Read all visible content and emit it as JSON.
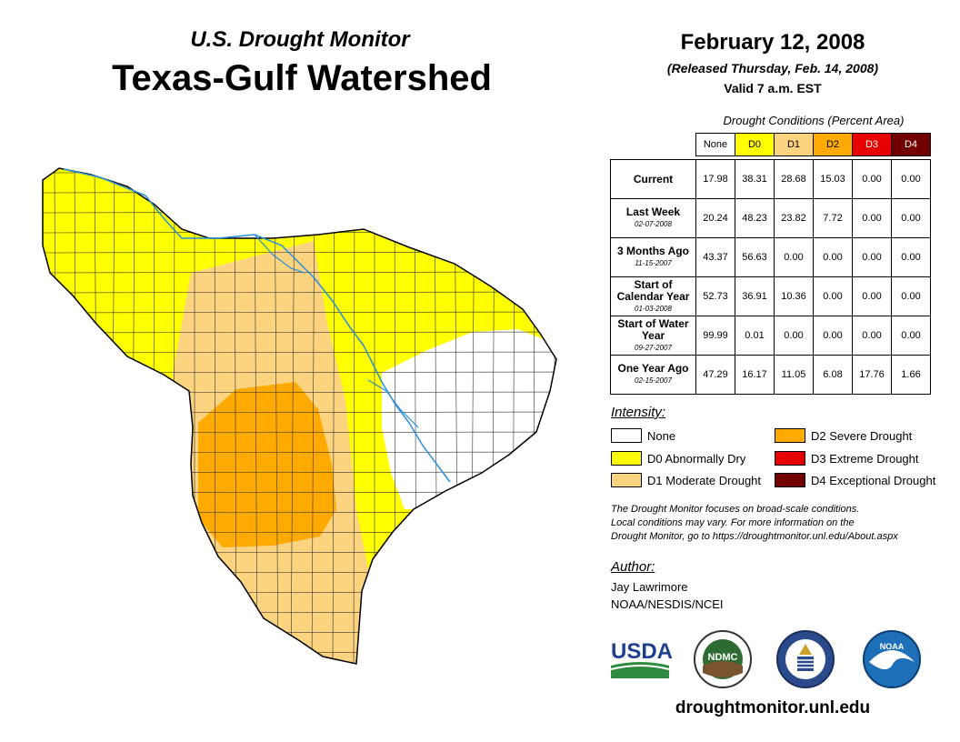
{
  "header": {
    "subtitle": "U.S. Drought Monitor",
    "title": "Texas-Gulf Watershed",
    "date": "February 12, 2008",
    "released": "(Released Thursday, Feb. 14, 2008)",
    "valid": "Valid 7 a.m. EST"
  },
  "table": {
    "caption": "Drought Conditions (Percent Area)",
    "columns": [
      "None",
      "D0",
      "D1",
      "D2",
      "D3",
      "D4"
    ],
    "rows": [
      {
        "label": "Current",
        "date": "",
        "values": [
          "17.98",
          "38.31",
          "28.68",
          "15.03",
          "0.00",
          "0.00"
        ]
      },
      {
        "label": "Last Week",
        "date": "02-07-2008",
        "values": [
          "20.24",
          "48.23",
          "23.82",
          "7.72",
          "0.00",
          "0.00"
        ]
      },
      {
        "label": "3 Months Ago",
        "date": "11-15-2007",
        "values": [
          "43.37",
          "56.63",
          "0.00",
          "0.00",
          "0.00",
          "0.00"
        ]
      },
      {
        "label": "Start of Calendar Year",
        "date": "01-03-2008",
        "values": [
          "52.73",
          "36.91",
          "10.36",
          "0.00",
          "0.00",
          "0.00"
        ]
      },
      {
        "label": "Start of Water Year",
        "date": "09-27-2007",
        "values": [
          "99.99",
          "0.01",
          "0.00",
          "0.00",
          "0.00",
          "0.00"
        ]
      },
      {
        "label": "One Year Ago",
        "date": "02-15-2007",
        "values": [
          "47.29",
          "16.17",
          "11.05",
          "6.08",
          "17.76",
          "1.66"
        ]
      }
    ]
  },
  "legend": {
    "title": "Intensity:",
    "items": [
      {
        "label": "None",
        "color": "#ffffff"
      },
      {
        "label": "D0 Abnormally Dry",
        "color": "#ffff00"
      },
      {
        "label": "D1 Moderate Drought",
        "color": "#fcd37f"
      },
      {
        "label": "D2 Severe Drought",
        "color": "#ffaa00"
      },
      {
        "label": "D3 Extreme Drought",
        "color": "#e60000"
      },
      {
        "label": "D4 Exceptional Drought",
        "color": "#730000"
      }
    ]
  },
  "note": {
    "line1": "The Drought Monitor focuses on broad-scale conditions.",
    "line2": "Local conditions may vary. For more information on the",
    "line3": "Drought Monitor, go to https://droughtmonitor.unl.edu/About.aspx"
  },
  "author": {
    "title": "Author:",
    "name": "Jay Lawrimore",
    "org": "NOAA/NESDIS/NCEI"
  },
  "logos": {
    "usda": "USDA",
    "ndmc": "NDMC",
    "noaa": "NOAA"
  },
  "website": "droughtmonitor.unl.edu",
  "colors": {
    "none": "#ffffff",
    "d0": "#ffff00",
    "d1": "#fcd37f",
    "d2": "#ffaa00",
    "d3": "#e60000",
    "d4": "#730000",
    "river": "#2a8fd8"
  }
}
